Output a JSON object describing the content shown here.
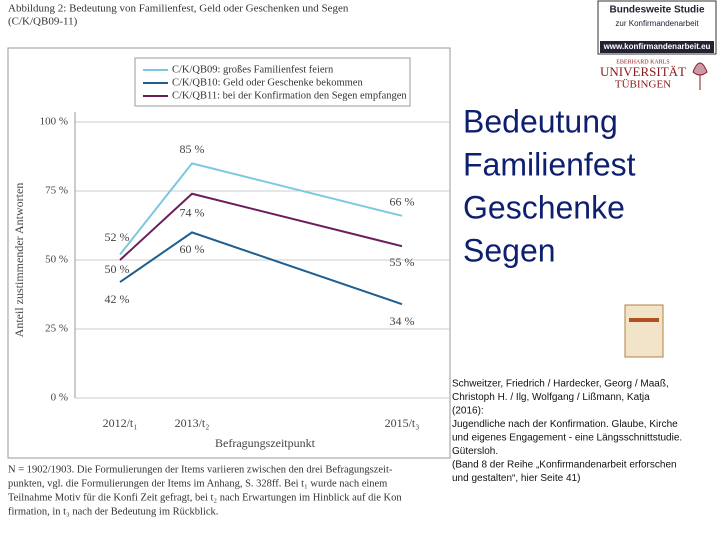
{
  "chart_data": {
    "type": "line",
    "title": [
      "Abbildung 2: Bedeutung von Familienfest, Geld oder Geschenken und Segen",
      "(C/K/QB09-11)"
    ],
    "x_label": "Befragungszeitpunkt",
    "y_label": "Anteil zustimmender Antworten",
    "categories": [
      "2012/t₁",
      "2013/t₂",
      "2015/t₃"
    ],
    "series": [
      {
        "name": "C/K/QB09: großes Familienfest feiern",
        "color": "#7cc8e0",
        "values": [
          52,
          85,
          66
        ],
        "value_labels": [
          "52 %",
          "85 %",
          "66 %"
        ]
      },
      {
        "name": "C/K/QB10: Geld oder Geschenke bekommen",
        "color": "#1f5f8f",
        "values": [
          42,
          60,
          34
        ],
        "value_labels": [
          "42 %",
          "60 %",
          "34 %"
        ]
      },
      {
        "name": "C/K/QB11: bei der Konfirmation den Segen empfangen",
        "color": "#6b1f5a",
        "values": [
          50,
          74,
          55
        ],
        "value_labels": [
          "50 %",
          "74 %",
          "55 %"
        ]
      }
    ],
    "ylim": [
      0,
      100
    ],
    "yticks": [
      {
        "value": 0,
        "label": "0 %"
      },
      {
        "value": 25,
        "label": "25 %"
      },
      {
        "value": 50,
        "label": "50 %"
      },
      {
        "value": 75,
        "label": "75 %"
      },
      {
        "value": 100,
        "label": "100 %"
      }
    ],
    "grid": true,
    "note": [
      "N = 1902/1903. Die Formulierungen der Items variieren zwischen den drei Befragungszeit-",
      "punkten, vgl. die Formulierungen der Items im Anhang, S. 328ff. Bei t₁ wurde nach einem",
      "Teilnahme Motiv für die Konfi Zeit gefragt, bei t₂ nach Erwartungen im Hinblick auf die Kon",
      "firmation, in t₃ nach der Bedeutung im Rückblick."
    ]
  },
  "logos": {
    "study": [
      "Bundesweite Studie",
      "zur Konfirmandenarbeit",
      "www.konfirmandenarbeit.eu"
    ],
    "university": [
      "EBERHARD KARLS",
      "UNIVERSITÄT",
      "TÜBINGEN"
    ]
  },
  "heading": [
    "Bedeutung",
    "Familienfest",
    "Geschenke",
    "Segen"
  ],
  "citation": [
    "Schweitzer, Friedrich / Hardecker, Georg / Maaß,",
    "Christoph H. / Ilg, Wolfgang / Lißmann, Katja",
    "(2016):",
    "Jugendliche nach der Konfirmation. Glaube, Kirche",
    "und eigenes Engagement - eine Längsschnittstudie.",
    "Gütersloh.",
    "(Band 8 der Reihe „Konfirmandenarbeit erforschen",
    "und gestalten“, hier Seite 41)"
  ]
}
